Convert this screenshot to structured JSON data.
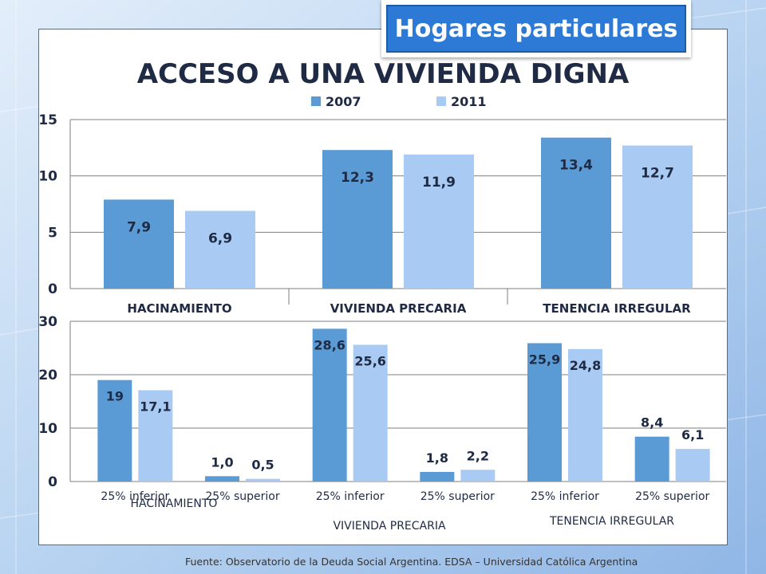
{
  "badge": {
    "label": "Hogares particulares"
  },
  "source": {
    "text": "Fuente:  Observatorio de  la Deuda Social Argentina. EDSA  – Universidad Católica Argentina"
  },
  "colors": {
    "c2007": "#5b9bd5",
    "c2011": "#a9cbf3",
    "frame": "#5a6b7c",
    "page_bg": "#c9dff5",
    "badge": "#2d7ad6"
  },
  "chart_data": [
    {
      "type": "bar",
      "title": "ACCESO A UNA VIVIENDA DIGNA",
      "categories": [
        "HACINAMIENTO",
        "VIVIENDA PRECARIA",
        "TENENCIA IRREGULAR"
      ],
      "series": [
        {
          "name": "2007",
          "values": [
            7.9,
            12.3,
            13.4
          ],
          "labels": [
            "7,9",
            "12,3",
            "13,4"
          ]
        },
        {
          "name": "2011",
          "values": [
            6.9,
            11.9,
            12.7
          ],
          "labels": [
            "6,9",
            "11,9",
            "12,7"
          ]
        }
      ],
      "ylim": [
        0,
        15
      ],
      "yticks": [
        0,
        5,
        10,
        15
      ],
      "grid": true,
      "legend": "top-center"
    },
    {
      "type": "bar",
      "groups": [
        "HACINAMIENTO",
        "VIVIENDA PRECARIA",
        "TENENCIA IRREGULAR"
      ],
      "categories": [
        "25% inferior",
        "25% superior",
        "25% inferior",
        "25% superior",
        "25% inferior",
        "25% superior"
      ],
      "series": [
        {
          "name": "2007",
          "values": [
            19,
            1.0,
            28.6,
            1.8,
            25.9,
            8.4
          ],
          "labels": [
            "19",
            "1,0",
            "28,6",
            "1,8",
            "25,9",
            "8,4"
          ]
        },
        {
          "name": "2011",
          "values": [
            17.1,
            0.5,
            25.6,
            2.2,
            24.8,
            6.1
          ],
          "labels": [
            "17,1",
            "0,5",
            "25,6",
            "2,2",
            "24,8",
            "6,1"
          ]
        }
      ],
      "ylim": [
        0,
        30
      ],
      "yticks": [
        0,
        10,
        20,
        30
      ],
      "grid": true
    }
  ]
}
